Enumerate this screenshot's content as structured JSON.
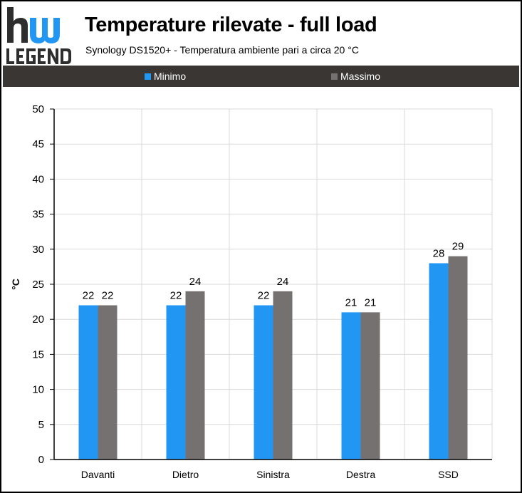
{
  "header": {
    "logo_text": "hw LEGEND",
    "title": "Temperature rilevate - full load",
    "subtitle": "Synology DS1520+ - Temperatura ambiente pari a circa 20 °C"
  },
  "colors": {
    "minimo": "#2196f3",
    "massimo": "#767171",
    "legend_bg": "#3a3634",
    "grid": "#d9d9d9",
    "axis": "#000000"
  },
  "chart_data": {
    "type": "bar",
    "categories": [
      "Davanti",
      "Dietro",
      "Sinistra",
      "Destra",
      "SSD"
    ],
    "series": [
      {
        "name": "Minimo",
        "values": [
          22,
          22,
          22,
          21,
          28
        ]
      },
      {
        "name": "Massimo",
        "values": [
          22,
          24,
          24,
          21,
          29
        ]
      }
    ],
    "ylabel": "°C",
    "ylim": [
      0,
      50
    ],
    "yticks": [
      0,
      5,
      10,
      15,
      20,
      25,
      30,
      35,
      40,
      45,
      50
    ],
    "grid": true,
    "legend": "top",
    "data_labels": true
  }
}
